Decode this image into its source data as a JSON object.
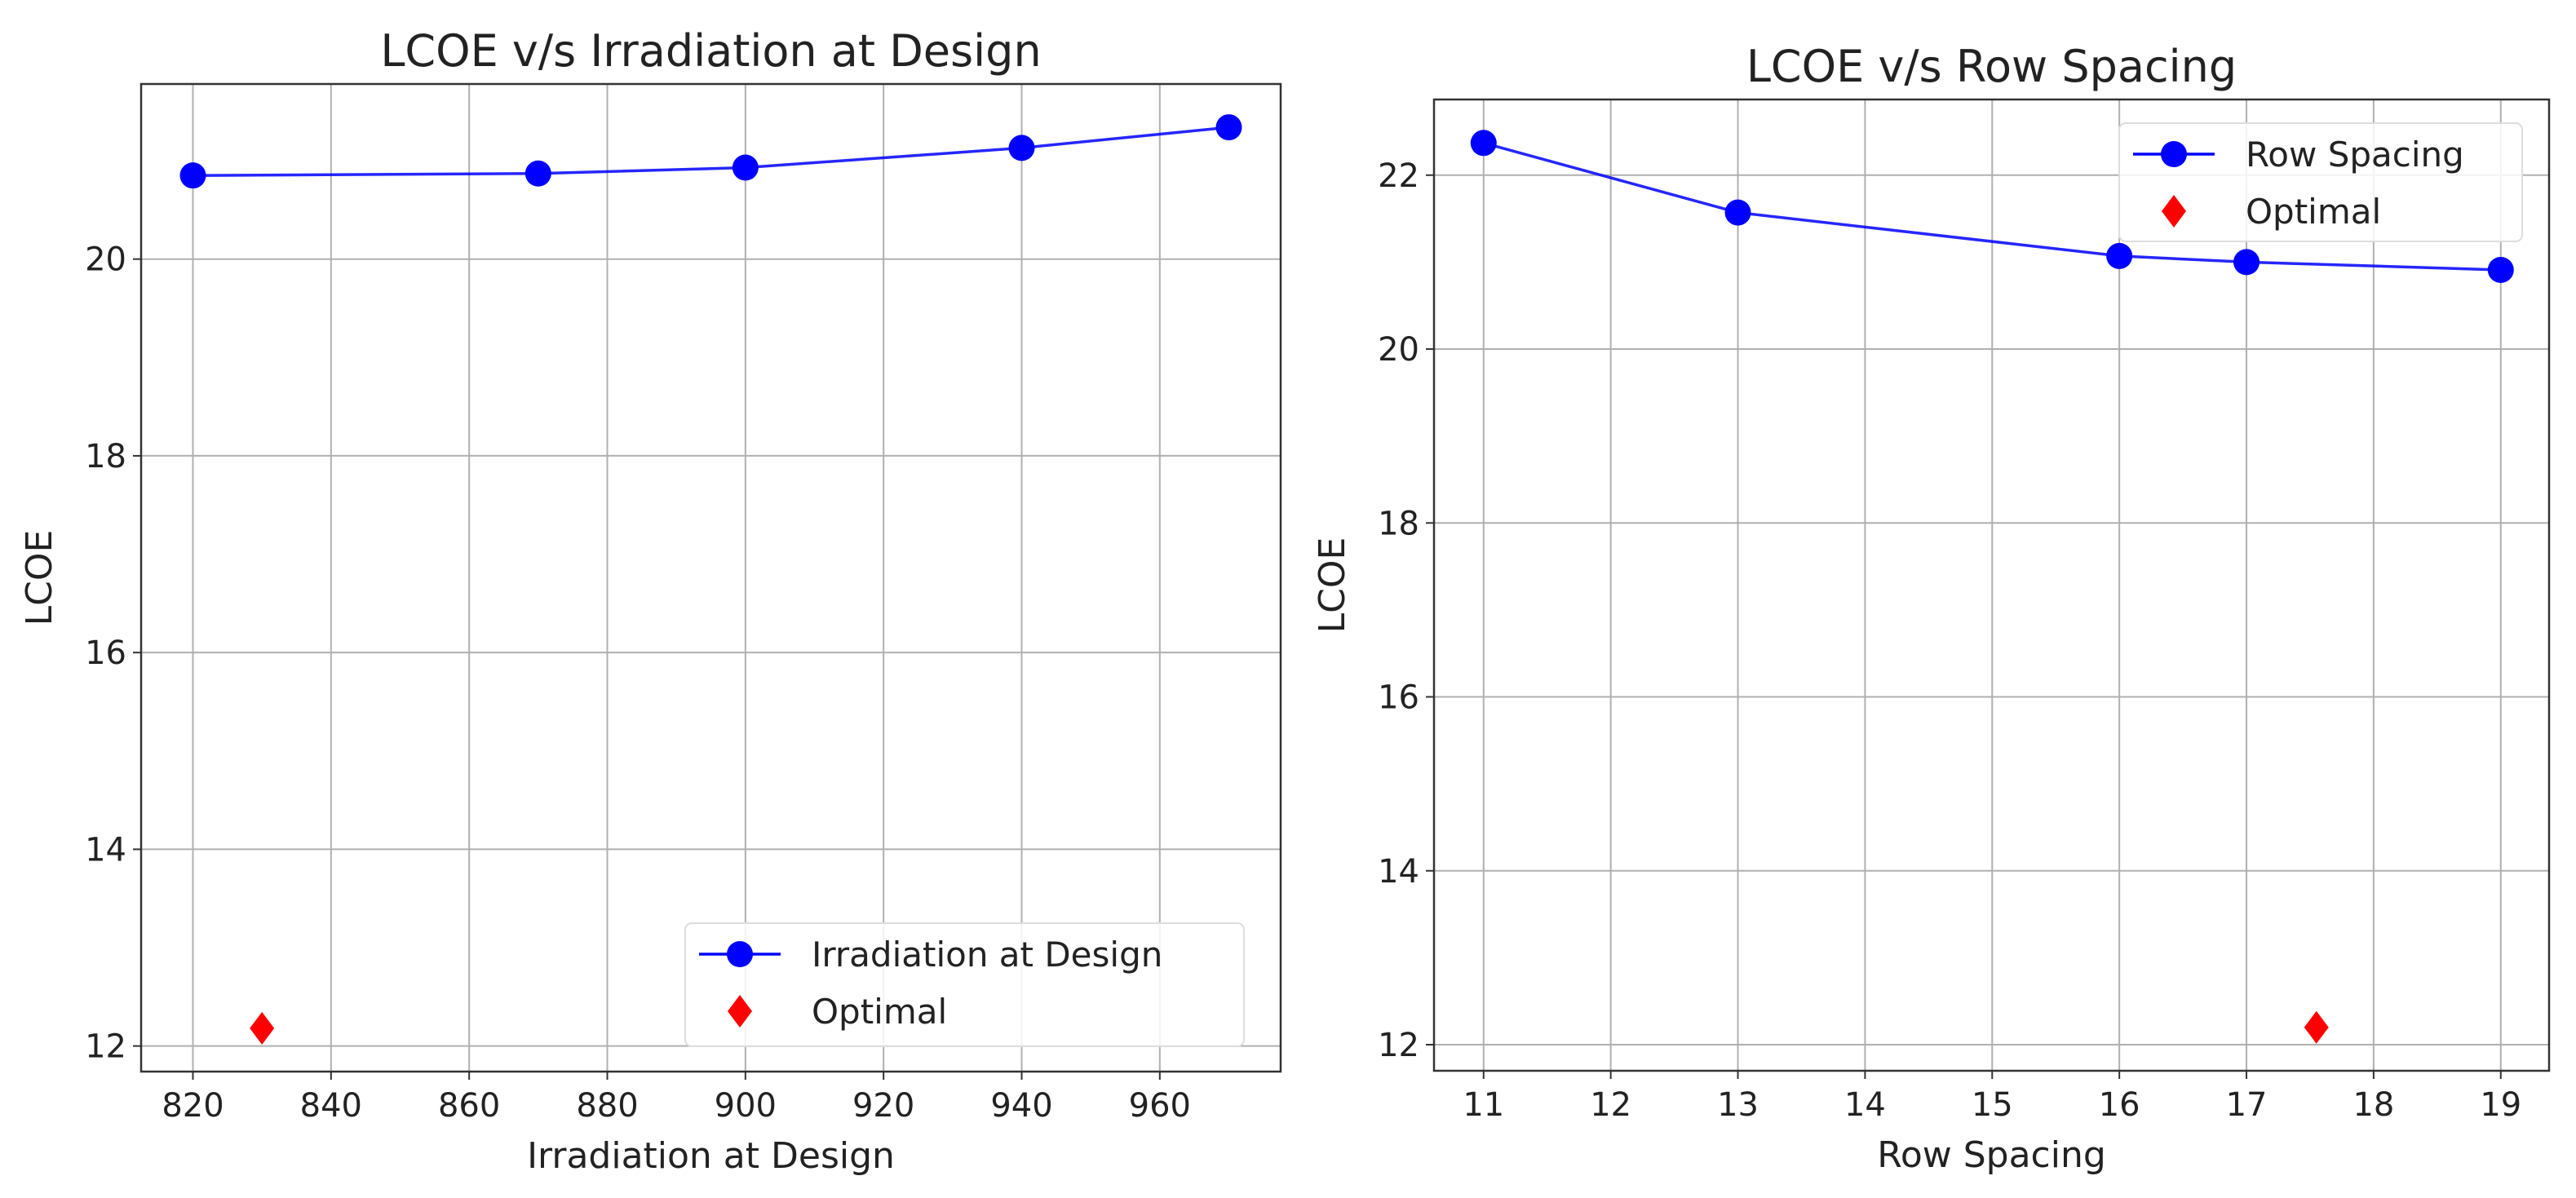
{
  "chart_data": [
    {
      "type": "line",
      "title": "LCOE v/s Irradiation at Design",
      "xlabel": "Irradiation at Design",
      "ylabel": "LCOE",
      "xlim": [
        812.5,
        977.5
      ],
      "ylim": [
        11.74,
        21.78
      ],
      "xticks": [
        820,
        840,
        860,
        880,
        900,
        920,
        940,
        960
      ],
      "yticks": [
        12,
        14,
        16,
        18,
        20
      ],
      "grid": true,
      "legend_position": "lower-right",
      "series": [
        {
          "name": "Irradiation at Design",
          "marker": "circle",
          "color": "#0000ff",
          "x": [
            820,
            870,
            900,
            940,
            970
          ],
          "y": [
            20.85,
            20.87,
            20.93,
            21.13,
            21.34
          ]
        },
        {
          "name": "Optimal",
          "marker": "diamond",
          "color": "#ff0000",
          "x": [
            830
          ],
          "y": [
            12.18
          ]
        }
      ]
    },
    {
      "type": "line",
      "title": "LCOE v/s Row Spacing",
      "xlabel": "Row Spacing",
      "ylabel": "LCOE",
      "xlim": [
        10.61,
        19.38
      ],
      "ylim": [
        11.7,
        22.87
      ],
      "xticks": [
        11,
        12,
        13,
        14,
        15,
        16,
        17,
        18,
        19
      ],
      "yticks": [
        12,
        14,
        16,
        18,
        20,
        22
      ],
      "grid": true,
      "legend_position": "upper-right",
      "series": [
        {
          "name": "Row Spacing",
          "marker": "circle",
          "color": "#0000ff",
          "x": [
            11,
            13,
            16,
            17,
            19
          ],
          "y": [
            22.37,
            21.57,
            21.07,
            21.0,
            20.91
          ]
        },
        {
          "name": "Optimal",
          "marker": "diamond",
          "color": "#ff0000",
          "x": [
            17.55
          ],
          "y": [
            12.2
          ]
        }
      ]
    }
  ]
}
